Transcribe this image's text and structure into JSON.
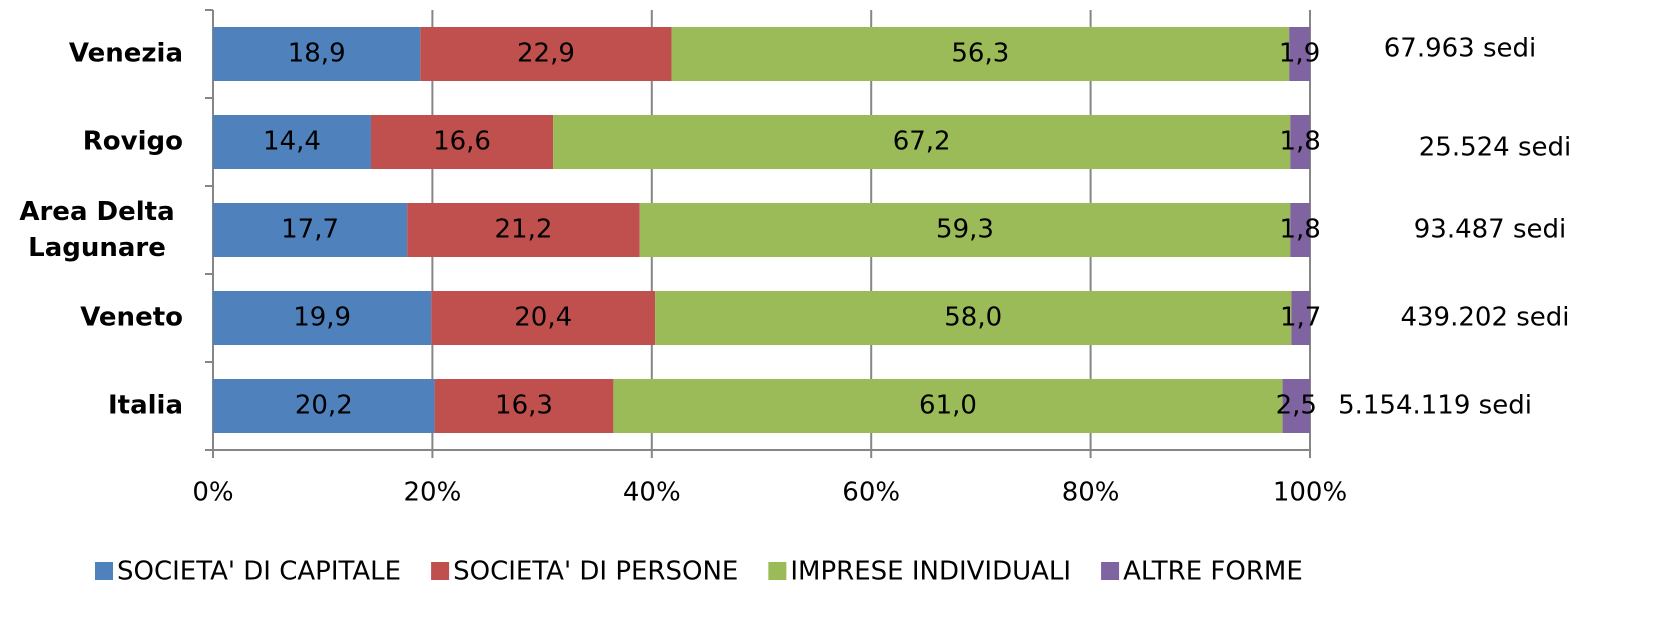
{
  "chart_data": {
    "type": "stacked-bar-horizontal",
    "categories": [
      "Venezia",
      "Rovigo",
      "Area Delta\nLagunare",
      "Veneto",
      "Italia"
    ],
    "series": [
      {
        "name": "SOCIETA' DI CAPITALE",
        "color": "#4f81bd",
        "values": [
          18.9,
          14.4,
          17.7,
          19.9,
          20.2
        ],
        "value_labels": [
          "18,9",
          "14,4",
          "17,7",
          "19,9",
          "20,2"
        ]
      },
      {
        "name": "SOCIETA' DI PERSONE",
        "color": "#c0504d",
        "values": [
          22.9,
          16.6,
          21.2,
          20.4,
          16.3
        ],
        "value_labels": [
          "22,9",
          "16,6",
          "21,2",
          "20,4",
          "16,3"
        ]
      },
      {
        "name": "IMPRESE INDIVIDUALI",
        "color": "#9bbb59",
        "values": [
          56.3,
          67.2,
          59.3,
          58.0,
          61.0
        ],
        "value_labels": [
          "56,3",
          "67,2",
          "59,3",
          "58,0",
          "61,0"
        ]
      },
      {
        "name": "ALTRE FORME",
        "color": "#8064a2",
        "values": [
          1.9,
          1.8,
          1.8,
          1.7,
          2.5
        ],
        "value_labels": [
          "1,9",
          "1,8",
          "1,8",
          "1,7",
          "2,5"
        ]
      }
    ],
    "annotations": [
      "67.963 sedi",
      "25.524 sedi",
      "93.487 sedi",
      "439.202 sedi",
      "5.154.119 sedi"
    ],
    "xlim": [
      0,
      100
    ],
    "xticks": [
      {
        "value": 0,
        "label": "0%"
      },
      {
        "value": 20,
        "label": "20%"
      },
      {
        "value": 40,
        "label": "40%"
      },
      {
        "value": 60,
        "label": "60%"
      },
      {
        "value": 80,
        "label": "80%"
      },
      {
        "value": 100,
        "label": "100%"
      }
    ],
    "grid": true,
    "legend": "bottom"
  }
}
